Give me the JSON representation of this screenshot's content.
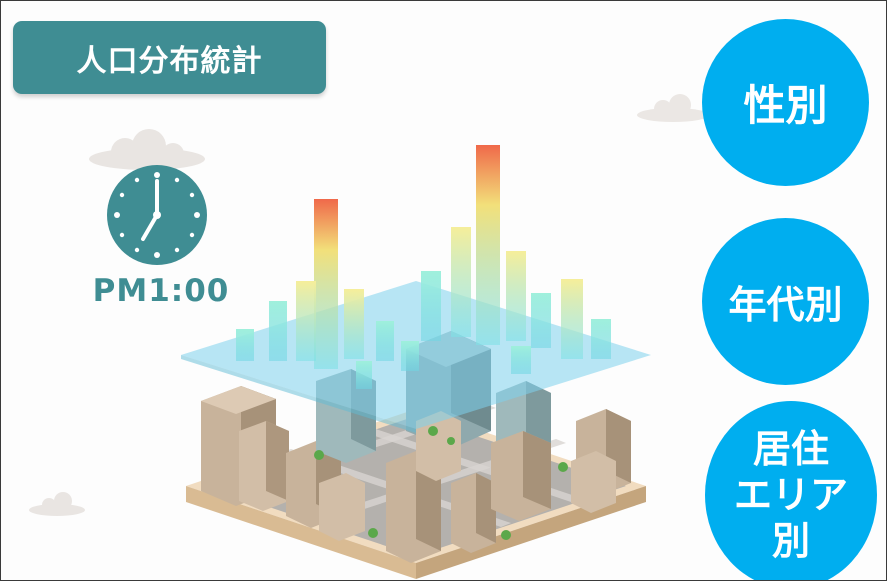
{
  "title": "人口分布統計",
  "time": "PM1:00",
  "buttons": {
    "gender": "性別",
    "age": "年代別",
    "area_lines": [
      "居住",
      "エリア",
      "別"
    ]
  },
  "icons": [
    "clock-icon",
    "cloud-icon",
    "city-illustration"
  ],
  "colors": {
    "title_bg": "#3f8d93",
    "button_bg": "#00aeef",
    "clock_teal": "#3f8d93",
    "heat_high": "#f0694a",
    "heat_mid": "#f2e07a",
    "heat_low": "#7fe1e6"
  }
}
